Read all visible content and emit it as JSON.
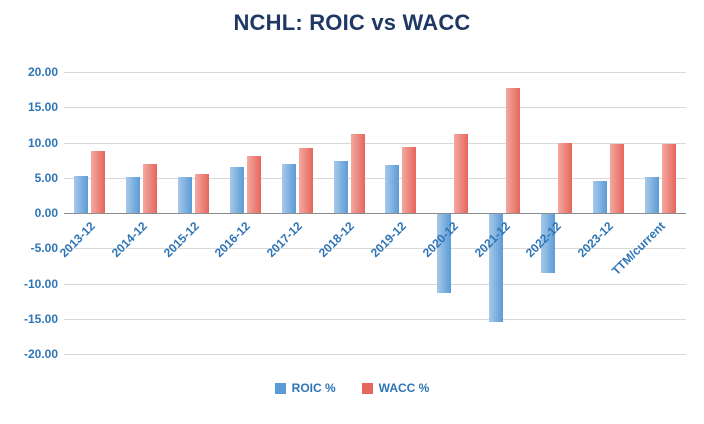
{
  "chart_data": {
    "type": "bar",
    "title": "NCHL: ROIC vs WACC",
    "categories": [
      "2013-12",
      "2014-12",
      "2015-12",
      "2016-12",
      "2017-12",
      "2018-12",
      "2019-12",
      "2020-12",
      "2021-12",
      "2022-12",
      "2023-12",
      "TTM/current"
    ],
    "series": [
      {
        "name": "ROIC %",
        "color": "#5B9BD5",
        "color_light": "#A7C9EA",
        "values": [
          5.2,
          5.1,
          5.1,
          6.5,
          7.0,
          7.4,
          6.8,
          -11.3,
          -15.5,
          -8.5,
          4.5,
          5.1
        ]
      },
      {
        "name": "WACC %",
        "color": "#E5665C",
        "color_light": "#F4A9A0",
        "values": [
          8.8,
          7.0,
          5.5,
          8.1,
          9.2,
          11.2,
          9.4,
          11.2,
          17.7,
          9.9,
          9.8,
          9.8
        ]
      }
    ],
    "ylim": [
      -20,
      20
    ],
    "ytick_step": 5,
    "ytick_format_decimals": 2,
    "grid": true,
    "legend_position": "bottom",
    "colors": {
      "title": "#1F3864",
      "axis_labels": "#2E75B6",
      "gridline": "#D9D9D9",
      "zero_line": "#8C8C8C",
      "background": "#FFFFFF"
    }
  }
}
